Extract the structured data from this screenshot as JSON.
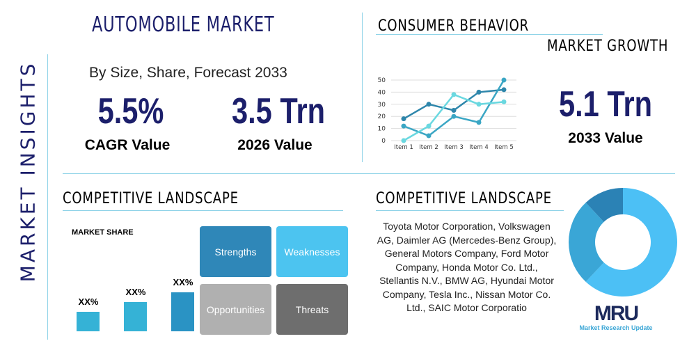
{
  "side_title": "MARKET INSIGHTS",
  "title": "AUTOMOBILE MARKET",
  "subtitle": "By Size, Share, Forecast 2033",
  "stats": [
    {
      "value": "5.5%",
      "label": "CAGR Value"
    },
    {
      "value": "3.5 Trn",
      "label": "2026 Value"
    },
    {
      "value": "5.1 Trn",
      "label": "2033 Value"
    }
  ],
  "consumer": {
    "title": "CONSUMER BEHAVIOR",
    "subtitle": "MARKET GROWTH"
  },
  "chart_data": {
    "type": "line",
    "categories": [
      "Item 1",
      "Item 2",
      "Item 3",
      "Item 4",
      "Item 5"
    ],
    "ylim": [
      0,
      50
    ],
    "yticks": [
      0,
      10,
      20,
      30,
      40,
      50
    ],
    "grid": true,
    "series": [
      {
        "values": [
          18,
          30,
          25,
          40,
          42
        ],
        "color": "#2e86ab"
      },
      {
        "values": [
          12,
          4,
          20,
          15,
          50
        ],
        "color": "#3aa6c4"
      },
      {
        "values": [
          0,
          12,
          38,
          30,
          32
        ],
        "color": "#6ad8e0"
      }
    ]
  },
  "competitive_left": {
    "title": "COMPETITIVE LANDSCAPE",
    "share_label": "MARKET SHARE",
    "bars": [
      {
        "label": "XX%",
        "value": 1
      },
      {
        "label": "XX%",
        "value": 1.5
      },
      {
        "label": "XX%",
        "value": 2
      }
    ]
  },
  "swot": [
    {
      "label": "Strengths",
      "color": "#2f87b8"
    },
    {
      "label": "Weaknesses",
      "color": "#4cc4f0"
    },
    {
      "label": "Opportunities",
      "color": "#b0b0b0"
    },
    {
      "label": "Threats",
      "color": "#6e6e6e"
    }
  ],
  "competitive_right": {
    "title": "COMPETITIVE LANDSCAPE",
    "companies": "Toyota Motor Corporation, Volkswagen AG, Daimler AG (Mercedes-Benz Group), General Motors Company, Ford Motor Company, Honda Motor Co. Ltd., Stellantis N.V., BMW AG, Hyundai Motor Company, Tesla Inc., Nissan Motor Co. Ltd., SAIC Motor Corporatio"
  },
  "donut": [
    {
      "value": 62,
      "color": "#4cc0f5"
    },
    {
      "value": 26,
      "color": "#3aa6d6"
    },
    {
      "value": 12,
      "color": "#2b82b5"
    }
  ],
  "logo": {
    "mark": "MRU",
    "text": "Market Research Update"
  }
}
